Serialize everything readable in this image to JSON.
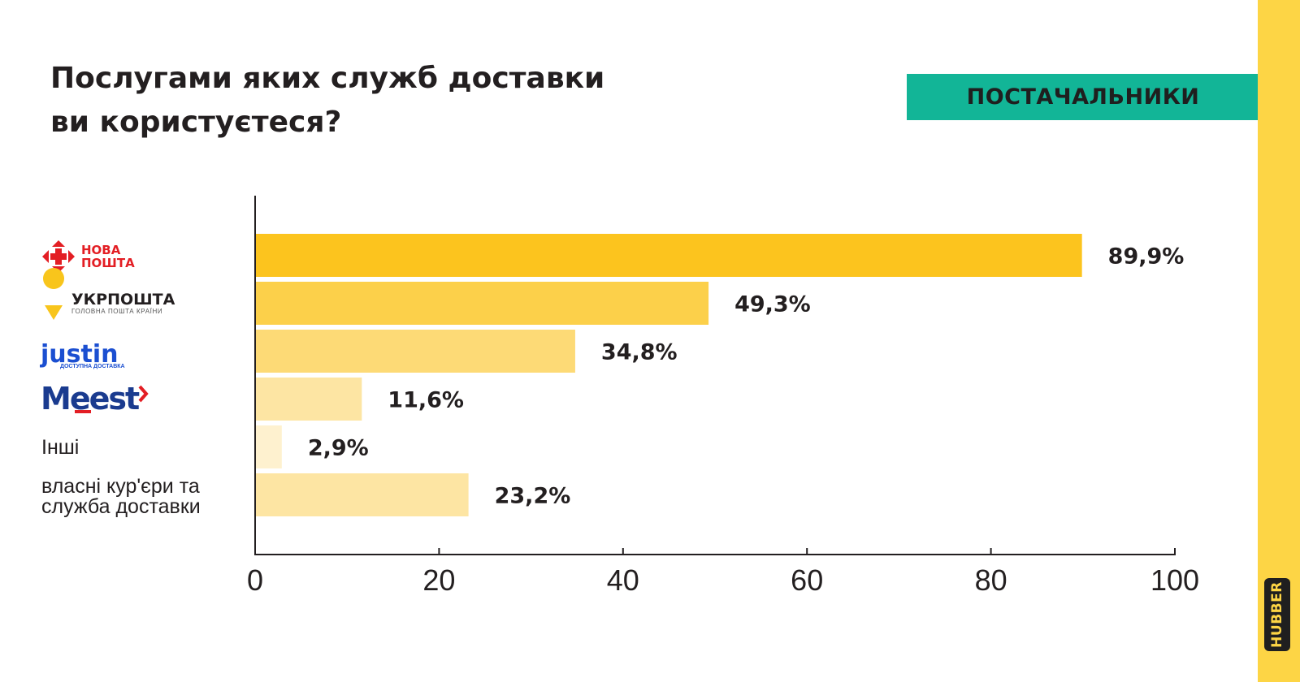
{
  "title_lines": [
    "Послугами яких служб доставки",
    "ви користуєтеся?"
  ],
  "badge": "ПОСТАЧАЛЬНИКИ",
  "brand": "HUBBER",
  "colors": {
    "badge": "#12b597",
    "sidebar": "#fdd545",
    "nova_poshta": "#e31e24",
    "ukrposhta": "#f8c51c",
    "justin": "#1b4fd1",
    "meest": "#1a3b8f"
  },
  "chart_data": {
    "type": "bar",
    "orientation": "horizontal",
    "categories": [
      "Нова Пошта",
      "Укрпошта",
      "Justin",
      "Meest",
      "Інші",
      "власні кур'єри та служба доставки"
    ],
    "values": [
      89.9,
      49.3,
      34.8,
      11.6,
      2.9,
      23.2
    ],
    "value_labels": [
      "89,9%",
      "49,3%",
      "34,8%",
      "11,6%",
      "2,9%",
      "23,2%"
    ],
    "bar_colors": [
      "#fcc41e",
      "#fcd04a",
      "#fdda76",
      "#fde5a3",
      "#fef1cf",
      "#fde5a3"
    ],
    "xlim": [
      0,
      100
    ],
    "xticks": [
      0,
      20,
      40,
      60,
      80,
      100
    ],
    "logos": {
      "nova_poshta": [
        "НОВА",
        "ПОШТА"
      ],
      "ukrposhta": [
        "УКРПОШТА",
        "ГОЛОВНА ПОШТА КРАЇНИ"
      ],
      "justin": [
        "justin",
        "ДОСТУПНА ДОСТАВКА"
      ],
      "meest": "Meest"
    },
    "text_labels": {
      "other": [
        "Інші"
      ],
      "own": [
        "власні кур'єри та",
        "служба доставки"
      ]
    }
  }
}
